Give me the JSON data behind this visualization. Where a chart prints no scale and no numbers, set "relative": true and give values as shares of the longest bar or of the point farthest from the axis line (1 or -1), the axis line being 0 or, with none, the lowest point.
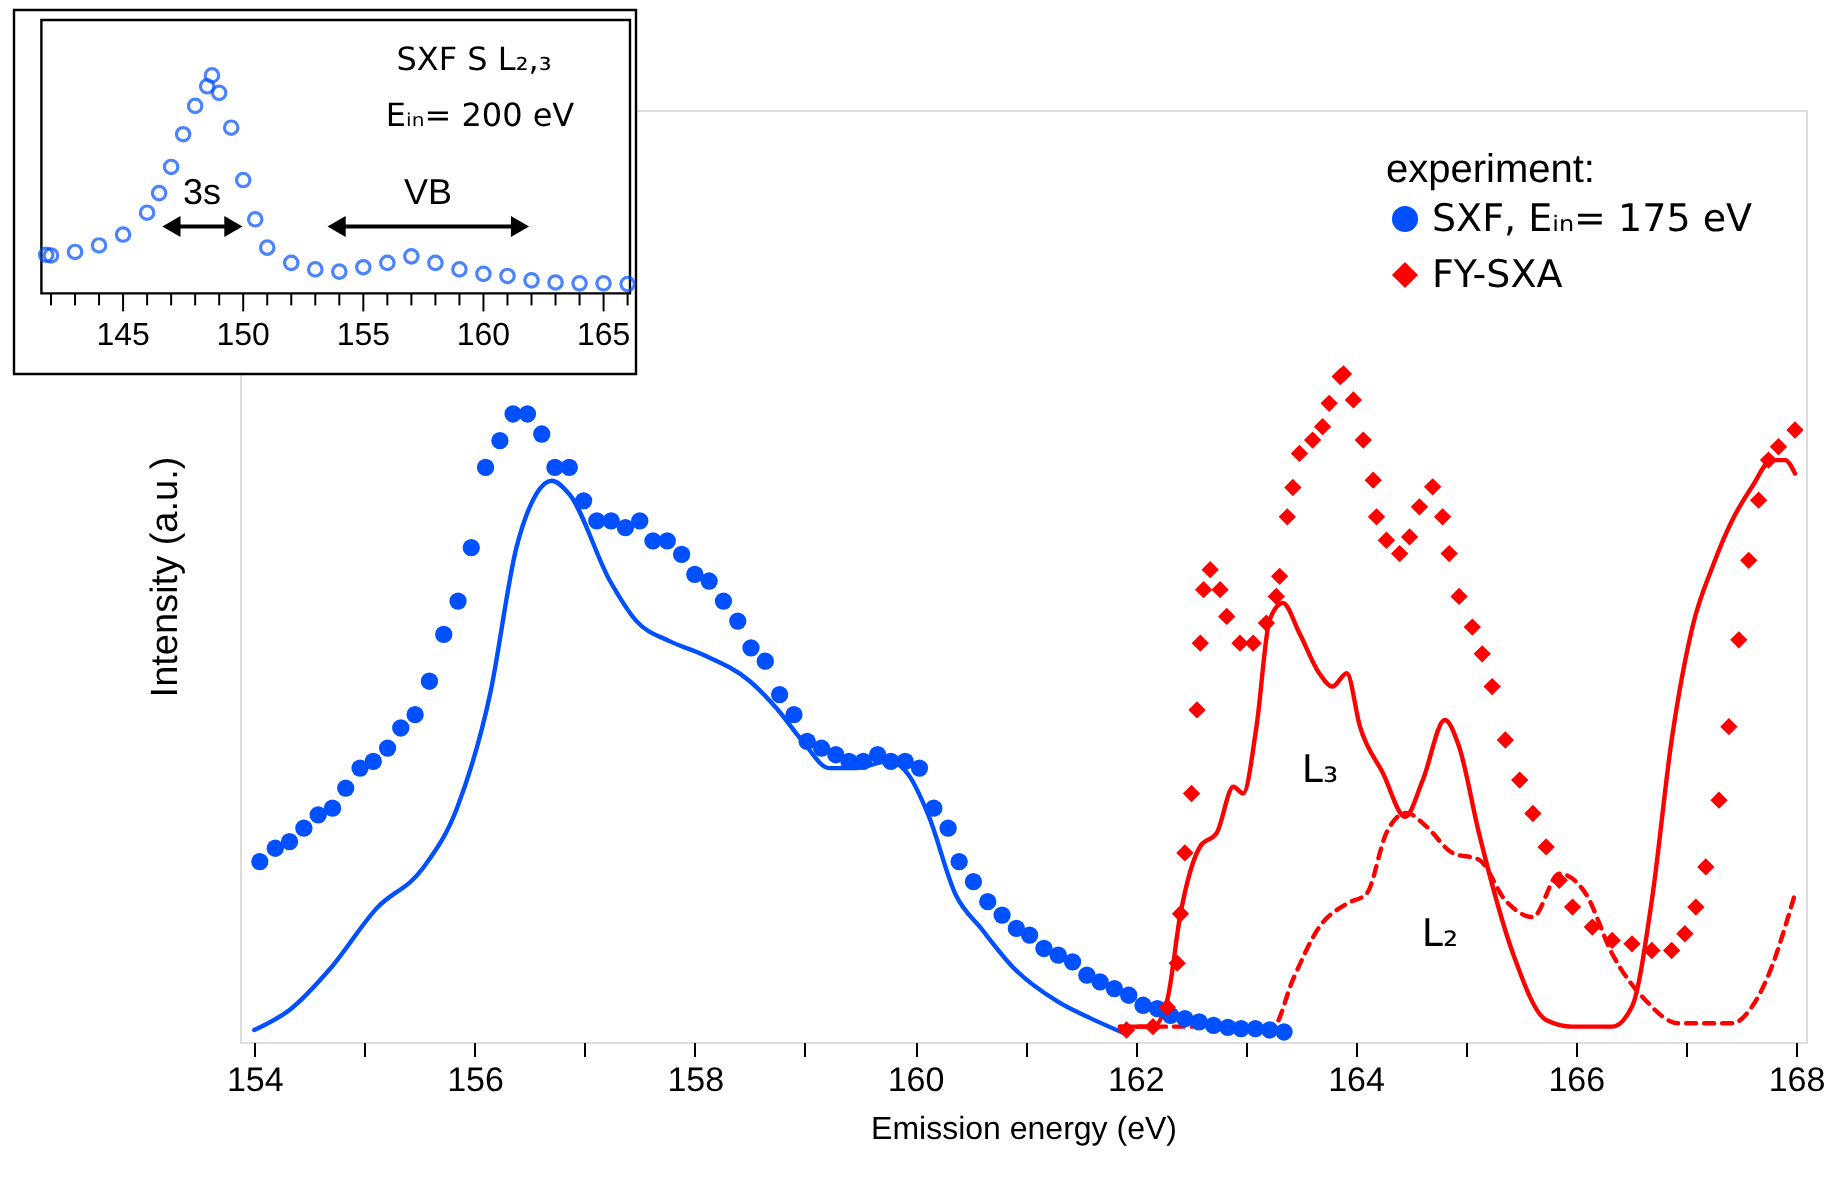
{
  "chart_data": [
    {
      "type": "scatter",
      "relative": true,
      "xlabel": "Emission energy (eV)",
      "ylabel": "Intensity (a.u.)",
      "legend": "top right",
      "legend_title": "experiment:",
      "tick_labels": "x",
      "xlim": [
        153.87,
        168.09
      ],
      "xticks": [
        154,
        {
          "value": 155,
          "label": null
        },
        156,
        {
          "value": 157,
          "label": null
        },
        158,
        {
          "value": 159,
          "label": null
        },
        160,
        {
          "value": 161,
          "label": null
        },
        162,
        {
          "value": 163,
          "label": null
        },
        164,
        {
          "value": 165,
          "label": null
        },
        166,
        {
          "value": 167,
          "label": null
        },
        168
      ],
      "annotations": [
        "L₃",
        "L₂"
      ],
      "series": [
        {
          "type": "line",
          "color": "#0050ff",
          "line_style": "solid",
          "x": [
            154.0,
            154.32,
            154.69,
            155.11,
            155.53,
            155.84,
            156.14,
            156.38,
            156.56,
            156.7,
            156.86,
            157.23,
            157.47,
            157.77,
            158.07,
            158.5,
            158.74,
            158.98,
            159.22,
            159.46,
            159.76,
            159.94,
            160.12,
            160.37,
            160.6,
            160.9,
            161.3,
            161.6,
            161.9
          ],
          "values": [
            0.018,
            0.048,
            0.11,
            0.2,
            0.26,
            0.35,
            0.52,
            0.74,
            0.82,
            0.84,
            0.82,
            0.69,
            0.63,
            0.6,
            0.58,
            0.54,
            0.5,
            0.45,
            0.41,
            0.41,
            0.42,
            0.4,
            0.34,
            0.22,
            0.17,
            0.11,
            0.06,
            0.035,
            0.013
          ]
        },
        {
          "type": "line",
          "color": "#ff0000",
          "line_style": "solid",
          "x": [
            161.86,
            162.16,
            162.29,
            162.41,
            162.59,
            162.74,
            162.89,
            162.98,
            163.1,
            163.22,
            163.34,
            163.49,
            163.67,
            163.79,
            163.92,
            164.04,
            164.25,
            164.45,
            164.61,
            164.81,
            164.94,
            165.12,
            165.43,
            165.73,
            165.97,
            166.33,
            166.51,
            166.69,
            166.87,
            167.06,
            167.24,
            167.42,
            167.6,
            167.78,
            167.9,
            167.99
          ],
          "values": [
            0.023,
            0.023,
            0.063,
            0.192,
            0.293,
            0.313,
            0.382,
            0.372,
            0.472,
            0.632,
            0.657,
            0.612,
            0.552,
            0.532,
            0.552,
            0.472,
            0.402,
            0.337,
            0.392,
            0.482,
            0.442,
            0.313,
            0.132,
            0.033,
            0.023,
            0.023,
            0.053,
            0.212,
            0.452,
            0.622,
            0.711,
            0.781,
            0.831,
            0.871,
            0.871,
            0.851
          ]
        },
        {
          "type": "line",
          "color": "#ff0000",
          "line_style": "dashed",
          "x": [
            161.86,
            163.25,
            163.43,
            163.67,
            163.92,
            164.1,
            164.28,
            164.46,
            164.64,
            164.88,
            165.12,
            165.36,
            165.61,
            165.85,
            166.09,
            166.33,
            166.63,
            166.93,
            167.42,
            167.6,
            167.78,
            167.9,
            167.99
          ],
          "values": [
            0.023,
            0.023,
            0.093,
            0.172,
            0.207,
            0.222,
            0.313,
            0.343,
            0.323,
            0.283,
            0.273,
            0.212,
            0.187,
            0.252,
            0.222,
            0.132,
            0.063,
            0.028,
            0.028,
            0.053,
            0.113,
            0.172,
            0.222
          ]
        },
        {
          "name": "SXF,  Eᵢₙ= 175 eV",
          "color": "#0050ff",
          "marker": "circle",
          "x": [
            154.05,
            154.19,
            154.32,
            154.45,
            154.58,
            154.71,
            154.83,
            154.96,
            155.08,
            155.21,
            155.33,
            155.46,
            155.59,
            155.72,
            155.85,
            155.97,
            156.1,
            156.23,
            156.35,
            156.48,
            156.61,
            156.73,
            156.86,
            156.99,
            157.11,
            157.24,
            157.37,
            157.5,
            157.62,
            157.75,
            157.88,
            158.0,
            158.13,
            158.26,
            158.39,
            158.51,
            158.64,
            158.77,
            158.9,
            159.02,
            159.15,
            159.28,
            159.4,
            159.53,
            159.66,
            159.78,
            159.91,
            160.04,
            160.17,
            160.3,
            160.4,
            160.53,
            160.66,
            160.79,
            160.92,
            161.04,
            161.17,
            161.3,
            161.43,
            161.56,
            161.68,
            161.81,
            161.94,
            162.07,
            162.2,
            162.32,
            162.45,
            162.58,
            162.71,
            162.84,
            162.96,
            163.09,
            163.22,
            163.35
          ],
          "values": [
            0.27,
            0.29,
            0.3,
            0.32,
            0.34,
            0.35,
            0.38,
            0.41,
            0.42,
            0.44,
            0.47,
            0.49,
            0.54,
            0.61,
            0.66,
            0.74,
            0.86,
            0.9,
            0.94,
            0.94,
            0.91,
            0.86,
            0.86,
            0.81,
            0.78,
            0.78,
            0.77,
            0.78,
            0.75,
            0.75,
            0.73,
            0.7,
            0.69,
            0.66,
            0.63,
            0.59,
            0.57,
            0.52,
            0.49,
            0.45,
            0.44,
            0.43,
            0.42,
            0.42,
            0.43,
            0.42,
            0.42,
            0.41,
            0.35,
            0.32,
            0.27,
            0.24,
            0.21,
            0.19,
            0.17,
            0.16,
            0.14,
            0.13,
            0.12,
            0.1,
            0.09,
            0.08,
            0.07,
            0.055,
            0.05,
            0.04,
            0.035,
            0.03,
            0.025,
            0.022,
            0.02,
            0.02,
            0.018,
            0.015
          ]
        },
        {
          "name": "FY-SXA",
          "color": "#ff0000",
          "marker": "diamond",
          "x": [
            161.92,
            162.16,
            162.29,
            162.38,
            162.41,
            162.45,
            162.51,
            162.56,
            162.59,
            162.62,
            162.68,
            162.77,
            162.83,
            162.95,
            163.07,
            163.19,
            163.28,
            163.31,
            163.38,
            163.43,
            163.49,
            163.61,
            163.7,
            163.76,
            163.86,
            163.89,
            163.98,
            164.07,
            164.16,
            164.19,
            164.28,
            164.4,
            164.49,
            164.58,
            164.7,
            164.79,
            164.85,
            164.94,
            165.06,
            165.15,
            165.24,
            165.36,
            165.49,
            165.61,
            165.73,
            165.85,
            165.97,
            166.15,
            166.33,
            166.51,
            166.69,
            166.87,
            166.99,
            167.09,
            167.18,
            167.3,
            167.39,
            167.48,
            167.57,
            167.66,
            167.75,
            167.84,
            167.99
          ],
          "values": [
            0.018,
            0.023,
            0.052,
            0.118,
            0.192,
            0.283,
            0.372,
            0.497,
            0.597,
            0.677,
            0.707,
            0.677,
            0.637,
            0.597,
            0.597,
            0.627,
            0.667,
            0.697,
            0.786,
            0.83,
            0.881,
            0.901,
            0.921,
            0.956,
            0.996,
            1.0,
            0.961,
            0.901,
            0.841,
            0.786,
            0.751,
            0.731,
            0.756,
            0.801,
            0.831,
            0.786,
            0.731,
            0.667,
            0.621,
            0.581,
            0.532,
            0.452,
            0.392,
            0.342,
            0.292,
            0.242,
            0.202,
            0.172,
            0.152,
            0.147,
            0.137,
            0.137,
            0.162,
            0.202,
            0.262,
            0.362,
            0.472,
            0.602,
            0.721,
            0.811,
            0.871,
            0.891,
            0.916
          ]
        }
      ]
    },
    {
      "type": "scatter",
      "relative": true,
      "tick_labels": "x",
      "color": "#0050ff",
      "marker": "circle",
      "xlim": [
        141.6,
        166.1
      ],
      "xticks": [
        {
          "value": 142,
          "label": null
        },
        {
          "value": 143,
          "label": null
        },
        {
          "value": 144,
          "label": null
        },
        145,
        {
          "value": 146,
          "label": null
        },
        {
          "value": 147,
          "label": null
        },
        {
          "value": 148,
          "label": null
        },
        {
          "value": 149,
          "label": null
        },
        150,
        {
          "value": 151,
          "label": null
        },
        {
          "value": 152,
          "label": null
        },
        {
          "value": 153,
          "label": null
        },
        {
          "value": 154,
          "label": null
        },
        155,
        {
          "value": 156,
          "label": null
        },
        {
          "value": 157,
          "label": null
        },
        {
          "value": 158,
          "label": null
        },
        {
          "value": 159,
          "label": null
        },
        160,
        {
          "value": 161,
          "label": null
        },
        {
          "value": 162,
          "label": null
        },
        {
          "value": 163,
          "label": null
        },
        {
          "value": 164,
          "label": null
        },
        165,
        {
          "value": 166,
          "label": null
        }
      ],
      "annotations": [
        "SXF  S L₂,₃",
        "Eᵢₙ= 200 eV",
        "3s",
        "VB"
      ],
      "x": [
        141.8,
        142,
        143,
        144,
        145,
        146,
        146.5,
        147,
        147.5,
        148,
        148.5,
        148.7,
        149,
        149.5,
        150,
        150.5,
        151,
        152,
        153,
        154,
        155,
        156,
        157,
        158,
        159,
        160,
        161,
        162,
        163,
        164,
        165,
        166
      ],
      "values": [
        0.177,
        0.174,
        0.19,
        0.22,
        0.27,
        0.37,
        0.46,
        0.58,
        0.73,
        0.86,
        0.95,
        1.0,
        0.92,
        0.76,
        0.52,
        0.34,
        0.21,
        0.14,
        0.11,
        0.1,
        0.12,
        0.14,
        0.17,
        0.14,
        0.11,
        0.09,
        0.08,
        0.06,
        0.05,
        0.046,
        0.046,
        0.043
      ]
    }
  ]
}
